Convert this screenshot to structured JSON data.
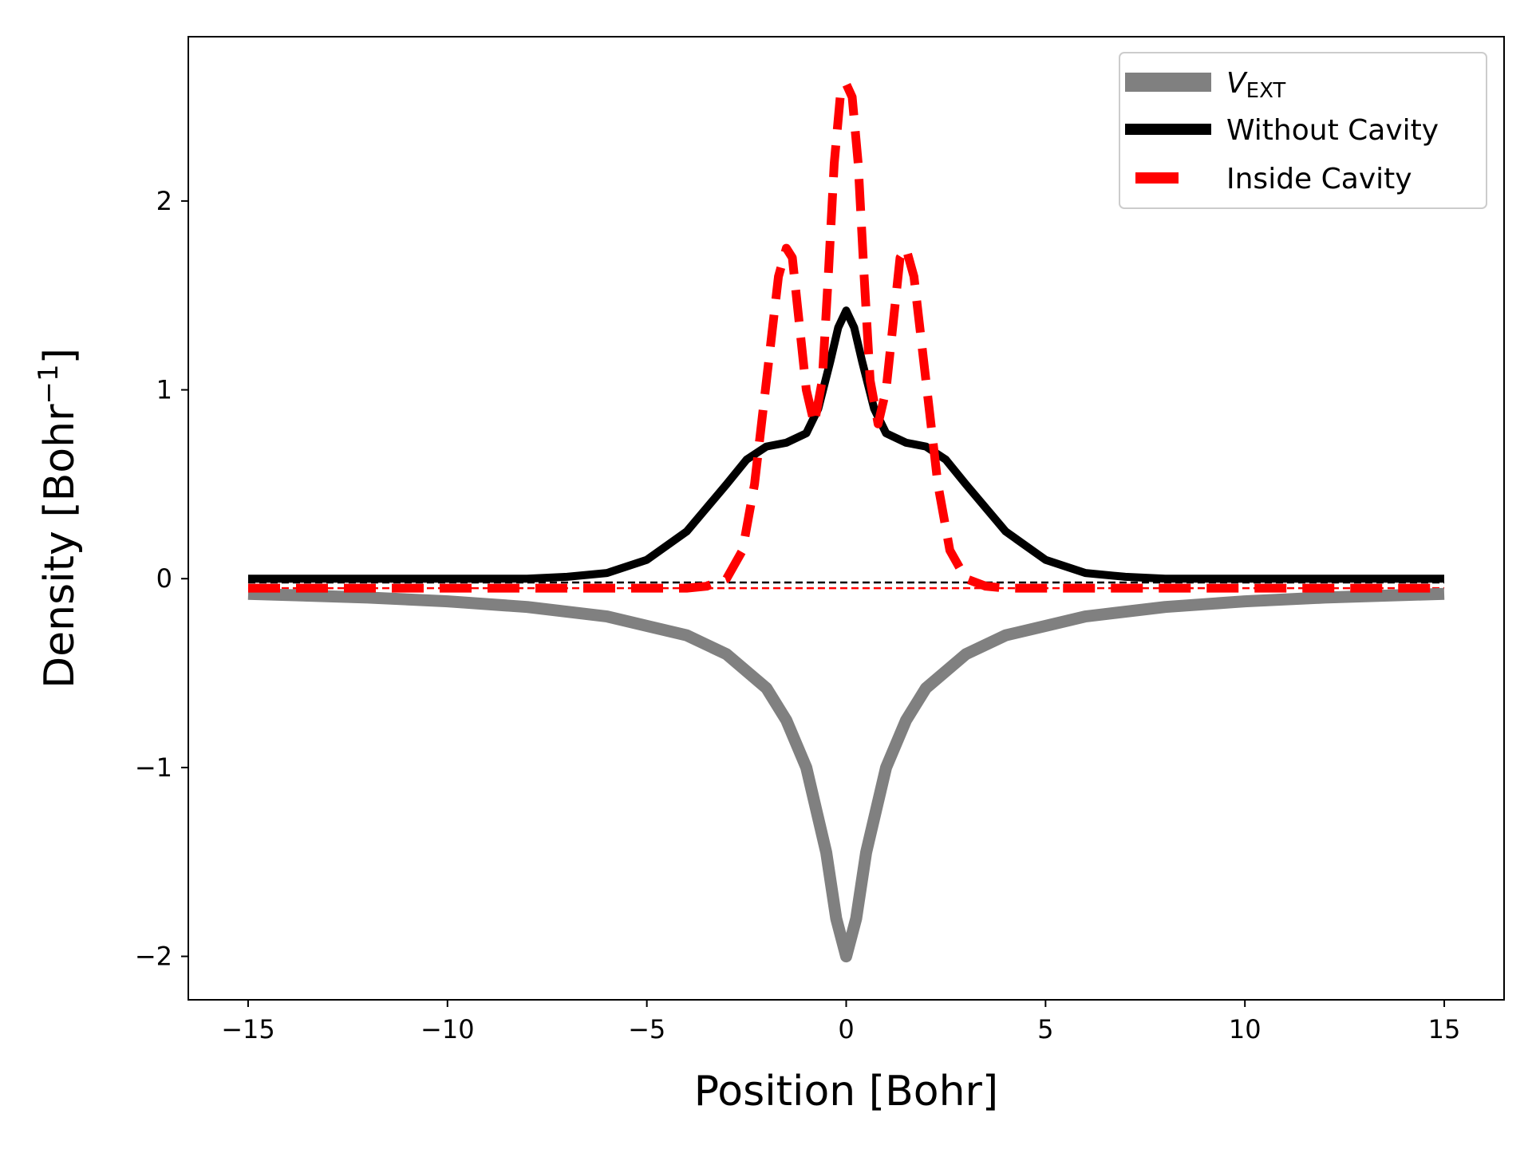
{
  "chart_data": {
    "type": "line",
    "xlabel": "Position [Bohr]",
    "ylabel_base": "Density [Bohr",
    "ylabel_sup": "−1",
    "ylabel_close": "]",
    "xlim": [
      -16.5,
      16.5
    ],
    "ylim": [
      -2.23,
      2.87
    ],
    "x_ticks": [
      -15,
      -10,
      -5,
      0,
      5,
      10,
      15
    ],
    "x_tick_labels": [
      "−15",
      "−10",
      "−5",
      "0",
      "5",
      "10",
      "15"
    ],
    "y_ticks": [
      -2,
      -1,
      0,
      1,
      2
    ],
    "y_tick_labels": [
      "−2",
      "−1",
      "0",
      "1",
      "2"
    ],
    "grid": false,
    "legend_position": "top-right",
    "series": [
      {
        "name": "V",
        "name_sub": "EXT",
        "color": "#808080",
        "style": "solid",
        "x": [
          -15,
          -12,
          -10,
          -8,
          -6,
          -5,
          -4,
          -3,
          -2,
          -1.5,
          -1,
          -0.5,
          -0.25,
          0,
          0.25,
          0.5,
          1,
          1.5,
          2,
          3,
          4,
          5,
          6,
          8,
          10,
          12,
          15
        ],
        "y": [
          -0.08,
          -0.1,
          -0.12,
          -0.15,
          -0.2,
          -0.25,
          -0.3,
          -0.4,
          -0.58,
          -0.75,
          -1.0,
          -1.45,
          -1.8,
          -2.0,
          -1.8,
          -1.45,
          -1.0,
          -0.75,
          -0.58,
          -0.4,
          -0.3,
          -0.25,
          -0.2,
          -0.15,
          -0.12,
          -0.1,
          -0.08
        ]
      },
      {
        "name": "Without Cavity",
        "color": "#000000",
        "style": "solid",
        "x": [
          -15,
          -10,
          -8,
          -7,
          -6,
          -5,
          -4,
          -3,
          -2.5,
          -2,
          -1.5,
          -1.0,
          -0.7,
          -0.4,
          -0.2,
          0,
          0.2,
          0.4,
          0.7,
          1.0,
          1.5,
          2,
          2.5,
          3,
          4,
          5,
          6,
          7,
          8,
          10,
          15
        ],
        "y": [
          0.0,
          0.0,
          0.0,
          0.01,
          0.03,
          0.1,
          0.25,
          0.5,
          0.63,
          0.7,
          0.72,
          0.77,
          0.9,
          1.15,
          1.33,
          1.42,
          1.33,
          1.15,
          0.9,
          0.77,
          0.72,
          0.7,
          0.63,
          0.5,
          0.25,
          0.1,
          0.03,
          0.01,
          0.0,
          0.0,
          0.0
        ]
      },
      {
        "name": "Inside Cavity",
        "color": "#ff0000",
        "style": "dashed",
        "x": [
          -15,
          -6,
          -4,
          -3.5,
          -3,
          -2.6,
          -2.3,
          -2.0,
          -1.7,
          -1.5,
          -1.35,
          -1.2,
          -1.0,
          -0.8,
          -0.6,
          -0.45,
          -0.3,
          -0.15,
          0,
          0.15,
          0.3,
          0.45,
          0.6,
          0.8,
          1.0,
          1.2,
          1.35,
          1.5,
          1.7,
          2.0,
          2.3,
          2.6,
          3,
          3.5,
          4,
          6,
          15
        ],
        "y": [
          -0.05,
          -0.05,
          -0.05,
          -0.04,
          0.0,
          0.15,
          0.5,
          1.05,
          1.6,
          1.75,
          1.7,
          1.4,
          1.0,
          0.82,
          1.05,
          1.6,
          2.2,
          2.55,
          2.62,
          2.55,
          2.2,
          1.6,
          1.05,
          0.82,
          1.0,
          1.4,
          1.7,
          1.75,
          1.6,
          1.05,
          0.5,
          0.15,
          0.0,
          -0.04,
          -0.05,
          -0.05,
          -0.05
        ]
      }
    ],
    "reference_lines": [
      {
        "color": "#000000",
        "x": [
          -15,
          15
        ],
        "y": [
          -0.02,
          -0.02
        ]
      },
      {
        "color": "#ff0000",
        "x": [
          -15,
          15
        ],
        "y": [
          -0.05,
          -0.05
        ]
      }
    ]
  }
}
